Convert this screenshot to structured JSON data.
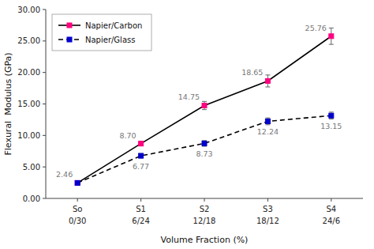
{
  "chart_data": {
    "type": "line",
    "categories": [
      "So",
      "S1",
      "S2",
      "S3",
      "S4"
    ],
    "category_sublabels": [
      "0/30",
      "6/24",
      "12/18",
      "18/12",
      "24/6"
    ],
    "xlabel": "Volume Fraction (%)",
    "ylabel": "Flexural  Modulus (GPa)",
    "ylim": [
      0.0,
      30.0
    ],
    "yticks": [
      {
        "value": 0.0,
        "label": "0.00"
      },
      {
        "value": 5.0,
        "label": "5.00"
      },
      {
        "value": 10.0,
        "label": "10.00"
      },
      {
        "value": 15.0,
        "label": "15.00"
      },
      {
        "value": 20.0,
        "label": "20.00"
      },
      {
        "value": 25.0,
        "label": "25.00"
      },
      {
        "value": 30.0,
        "label": "30.00"
      }
    ],
    "grid": false,
    "legend": "upper left",
    "data_labels": true,
    "series": [
      {
        "name": "Napier/Carbon",
        "color": "#FF007F",
        "marker": "square",
        "line_style": "solid",
        "values": [
          2.46,
          8.7,
          14.75,
          18.65,
          25.76
        ],
        "errors": [
          0.15,
          0.35,
          0.65,
          0.95,
          1.3
        ],
        "value_labels": [
          "2.46",
          "8.70",
          "14.75",
          "18.65",
          "25.76"
        ]
      },
      {
        "name": "Napier/Glass",
        "color": "#0000CD",
        "marker": "square",
        "line_style": "dashed",
        "values": [
          2.46,
          6.77,
          8.73,
          12.24,
          13.15
        ],
        "errors": [
          0.15,
          0.35,
          0.45,
          0.55,
          0.55
        ],
        "value_labels": [
          null,
          "6.77",
          "8.73",
          "12.24",
          "13.15"
        ]
      }
    ]
  }
}
